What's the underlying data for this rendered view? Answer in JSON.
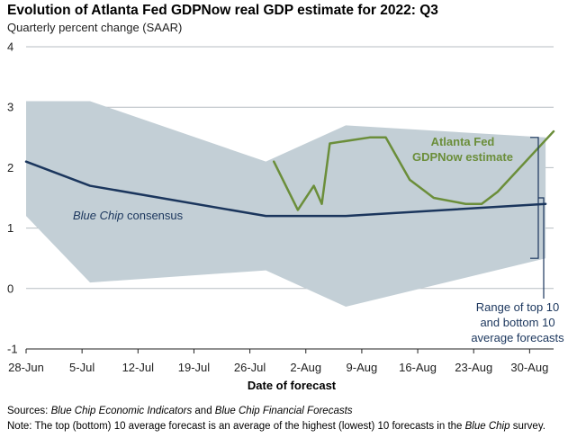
{
  "chart_data": {
    "type": "line",
    "title": "Evolution of Atlanta Fed GDPNow real GDP estimate for 2022: Q3",
    "subtitle": "Quarterly percent change (SAAR)",
    "xlabel": "Date of forecast",
    "ylabel": "",
    "x_start": "2022-06-28",
    "x_end": "2022-09-02",
    "xticks": [
      {
        "date": "2022-06-28",
        "label": "28-Jun"
      },
      {
        "date": "2022-07-05",
        "label": "5-Jul"
      },
      {
        "date": "2022-07-12",
        "label": "12-Jul"
      },
      {
        "date": "2022-07-19",
        "label": "19-Jul"
      },
      {
        "date": "2022-07-26",
        "label": "26-Jul"
      },
      {
        "date": "2022-08-02",
        "label": "2-Aug"
      },
      {
        "date": "2022-08-09",
        "label": "9-Aug"
      },
      {
        "date": "2022-08-16",
        "label": "16-Aug"
      },
      {
        "date": "2022-08-23",
        "label": "23-Aug"
      },
      {
        "date": "2022-08-30",
        "label": "30-Aug"
      }
    ],
    "ylim": [
      -1,
      4
    ],
    "yticks": [
      -1,
      0,
      1,
      2,
      3,
      4
    ],
    "ytick_labels": [
      "-1",
      "0",
      "1",
      "2",
      "3",
      "4"
    ],
    "grid": "horizontal",
    "series": [
      {
        "name": "GDPNow",
        "color": "#6b8e3a",
        "points": [
          {
            "x": "2022-07-29",
            "y": 2.1
          },
          {
            "x": "2022-08-01",
            "y": 1.3
          },
          {
            "x": "2022-08-03",
            "y": 1.7
          },
          {
            "x": "2022-08-04",
            "y": 1.4
          },
          {
            "x": "2022-08-05",
            "y": 2.4
          },
          {
            "x": "2022-08-10",
            "y": 2.5
          },
          {
            "x": "2022-08-12",
            "y": 2.5
          },
          {
            "x": "2022-08-15",
            "y": 1.8
          },
          {
            "x": "2022-08-17",
            "y": 1.6
          },
          {
            "x": "2022-08-18",
            "y": 1.5
          },
          {
            "x": "2022-08-22",
            "y": 1.4
          },
          {
            "x": "2022-08-24",
            "y": 1.4
          },
          {
            "x": "2022-08-26",
            "y": 1.6
          },
          {
            "x": "2022-09-02",
            "y": 2.6
          }
        ]
      },
      {
        "name": "Blue Chip consensus",
        "color": "#1b365d",
        "points": [
          {
            "x": "2022-06-28",
            "y": 2.1
          },
          {
            "x": "2022-07-06",
            "y": 1.7
          },
          {
            "x": "2022-07-28",
            "y": 1.2
          },
          {
            "x": "2022-08-07",
            "y": 1.2
          },
          {
            "x": "2022-09-01",
            "y": 1.4
          }
        ]
      }
    ],
    "band": {
      "name": "Range of top 10 and bottom 10 average forecasts",
      "color": "#c3cfd6",
      "upper": [
        {
          "x": "2022-06-28",
          "y": 3.1
        },
        {
          "x": "2022-07-06",
          "y": 3.1
        },
        {
          "x": "2022-07-28",
          "y": 2.1
        },
        {
          "x": "2022-08-07",
          "y": 2.7
        },
        {
          "x": "2022-09-01",
          "y": 2.5
        }
      ],
      "lower": [
        {
          "x": "2022-06-28",
          "y": 1.2
        },
        {
          "x": "2022-07-06",
          "y": 0.1
        },
        {
          "x": "2022-07-28",
          "y": 0.3
        },
        {
          "x": "2022-08-07",
          "y": -0.3
        },
        {
          "x": "2022-09-01",
          "y": 0.5
        }
      ]
    },
    "annotations": {
      "gdpnow_label": [
        "Atlanta Fed",
        "GDPNow estimate"
      ],
      "bluechip_label_italic": "Blue Chip",
      "bluechip_label_rest": " consensus",
      "range_label": [
        "Range of top 10",
        "and bottom 10",
        "average forecasts"
      ]
    }
  },
  "footer": {
    "sources_label": "Sources:",
    "sources_part1": "Blue Chip Economic Indicators",
    "sources_and": " and ",
    "sources_part2": "Blue Chip Financial Forecasts",
    "note_label": "Note:",
    "note_text_before": " The top (bottom) 10 average forecast is an average of the highest (lowest) 10 forecasts in the ",
    "note_italic": "Blue Chip",
    "note_text_after": " survey."
  }
}
